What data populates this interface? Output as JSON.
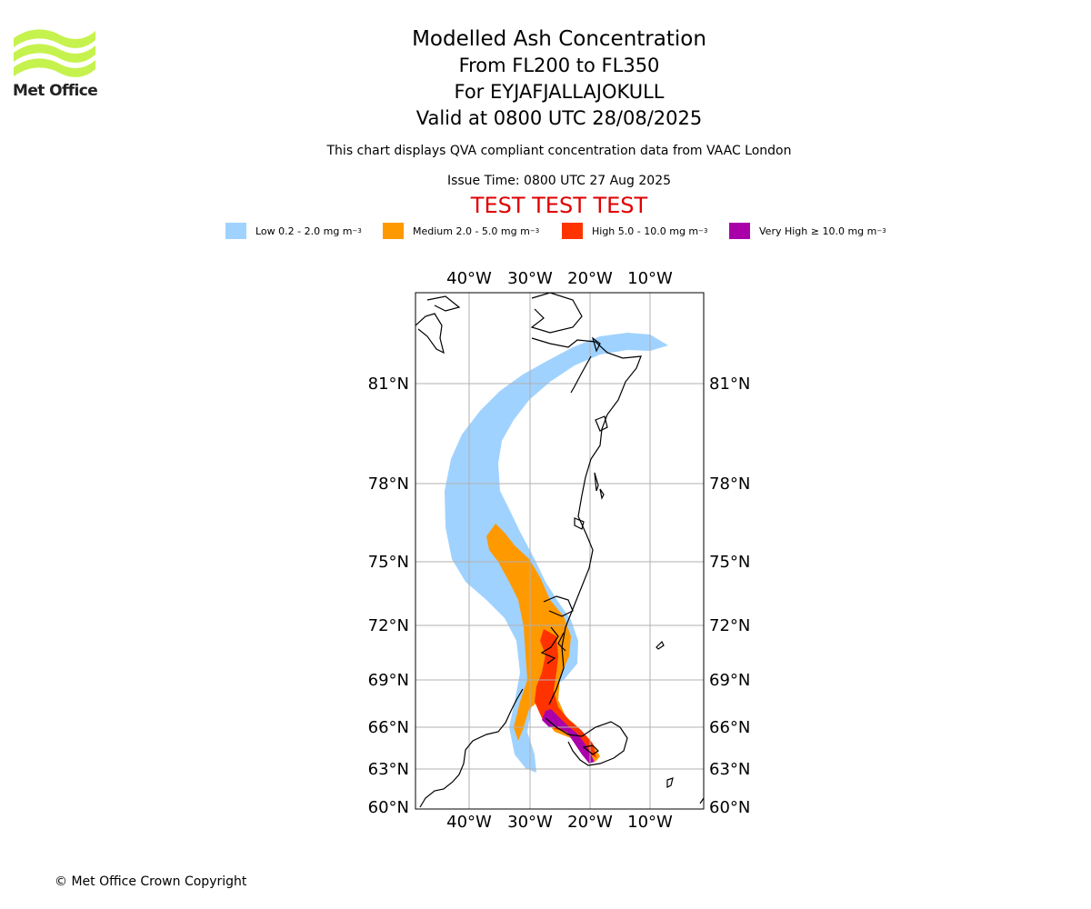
{
  "logo": {
    "name": "Met Office",
    "color": "#c6f24e"
  },
  "title": {
    "line1": "Modelled Ash Concentration",
    "line2": "From FL200 to FL350",
    "line3": "For EYJAFJALLAJOKULL",
    "line4": "Valid at 0800 UTC 28/08/2025"
  },
  "subtitle": "This chart displays QVA compliant concentration data from VAAC London",
  "issue_time": "Issue Time: 0800 UTC 27 Aug 2025",
  "test_banner": "TEST TEST TEST",
  "legend": [
    {
      "label": "Low 0.2 - 2.0 mg m",
      "sup": "−3",
      "color": "#a0d2ff"
    },
    {
      "label": "Medium 2.0 - 5.0 mg m",
      "sup": "−3",
      "color": "#ff9900"
    },
    {
      "label": "High 5.0 - 10.0 mg m",
      "sup": "−3",
      "color": "#ff3300"
    },
    {
      "label": "Very High  ≥  10.0 mg m",
      "sup": "−3",
      "color": "#aa00aa"
    }
  ],
  "map": {
    "lon_labels": [
      "40°W",
      "30°W",
      "20°W",
      "10°W"
    ],
    "lat_labels": [
      "81°N",
      "78°N",
      "75°N",
      "72°N",
      "69°N",
      "66°N",
      "63°N",
      "60°N"
    ]
  },
  "copyright": "© Met Office Crown Copyright"
}
